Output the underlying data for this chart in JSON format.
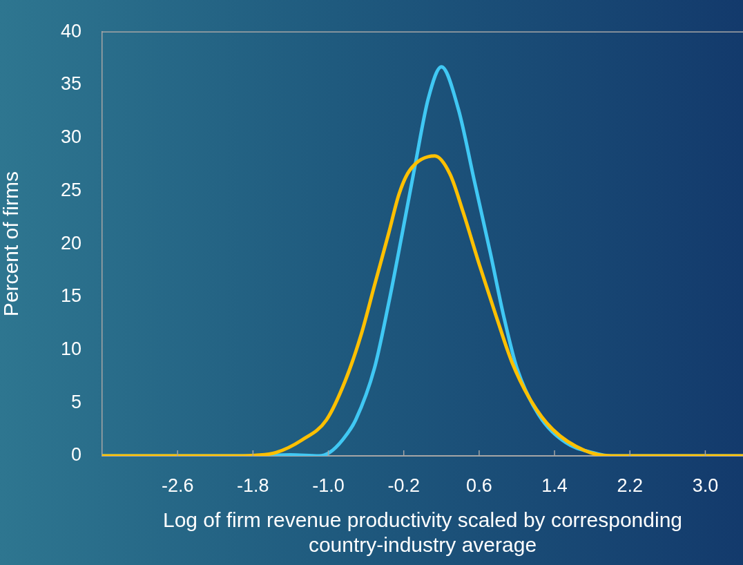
{
  "chart_data": {
    "type": "line",
    "xlabel": "Log of firm revenue productivity scaled by corresponding country-industry average",
    "ylabel": "Percent of firms",
    "xlim": [
      -3.4,
      3.4
    ],
    "xticks": [
      -2.6,
      -1.8,
      {
        "value": -1.0,
        "label": "-1.0"
      },
      -0.2,
      0.6,
      1.4,
      2.2,
      {
        "value": 3.0,
        "label": "3.0"
      }
    ],
    "ylim": [
      0,
      40
    ],
    "yticks": [
      0,
      5,
      10,
      15,
      20,
      25,
      30,
      35,
      40
    ],
    "grid": false,
    "legend": false,
    "marker": "none",
    "line_style": "solid",
    "series": [
      {
        "color": "#40c8f4",
        "x": [
          -3.4,
          -1.8,
          -1.4,
          -1.1,
          -0.99,
          -0.85,
          -0.71,
          -0.51,
          -0.36,
          -0.22,
          -0.08,
          0.06,
          0.2,
          0.38,
          0.55,
          0.72,
          0.86,
          1.0,
          1.23,
          1.52,
          1.81,
          2.0,
          3.4
        ],
        "values": [
          0,
          0,
          0.1,
          0,
          0.3,
          1.5,
          3.4,
          8.3,
          14.4,
          20.8,
          27.4,
          33.7,
          36.7,
          32.7,
          25.9,
          19.1,
          13.2,
          8.3,
          3.9,
          1.25,
          0.3,
          0,
          0
        ]
      },
      {
        "color": "#ffc000",
        "x": [
          -3.4,
          -1.9,
          -1.78,
          -1.56,
          -1.28,
          -1.02,
          -0.82,
          -0.65,
          -0.51,
          -0.36,
          -0.25,
          -0.14,
          0.13,
          0.29,
          0.43,
          0.6,
          0.78,
          0.95,
          1.15,
          1.38,
          1.72,
          2.0,
          3.4
        ],
        "values": [
          0,
          0,
          0.05,
          0.3,
          1.5,
          3.4,
          7.1,
          11.5,
          16.1,
          21.0,
          24.7,
          26.9,
          28.3,
          26.6,
          23.0,
          18.1,
          13.2,
          8.8,
          5.2,
          2.5,
          0.5,
          0,
          0
        ]
      }
    ]
  }
}
